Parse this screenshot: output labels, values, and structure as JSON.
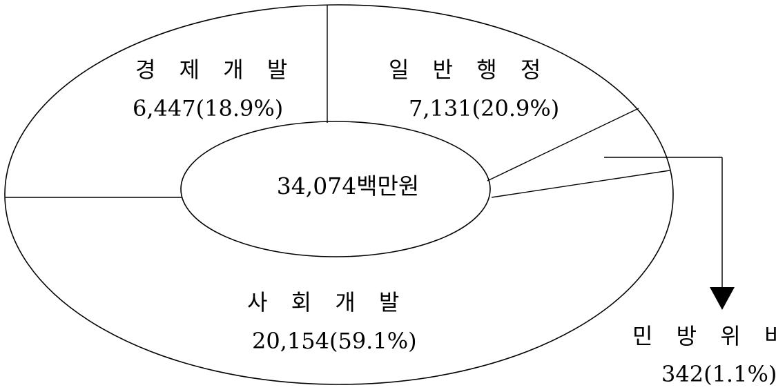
{
  "chart_data": {
    "type": "pie",
    "center_label": "34,074백만원",
    "slices": [
      {
        "name": "경제개발",
        "value": 6447,
        "percent": 18.9,
        "label_name": "경 제 개 발",
        "label_value": "6,447(18.9%)"
      },
      {
        "name": "일반행정",
        "value": 7131,
        "percent": 20.9,
        "label_name": "일 반 행 정",
        "label_value": "7,131(20.9%)"
      },
      {
        "name": "민방위비",
        "value": 342,
        "percent": 1.1,
        "label_name": "민 방 위 비",
        "label_value": "342(1.1%)"
      },
      {
        "name": "사회개발",
        "value": 20154,
        "percent": 59.1,
        "label_name": "사 회 개 발",
        "label_value": "20,154(59.1%)"
      }
    ]
  }
}
